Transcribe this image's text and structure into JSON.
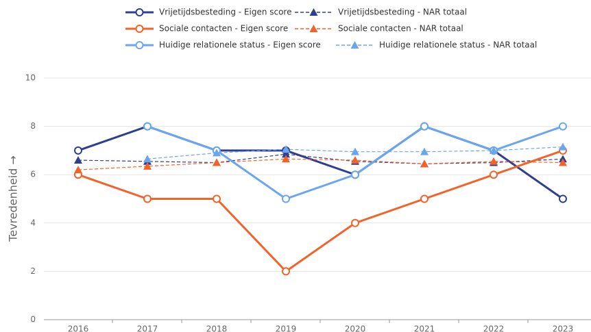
{
  "chart_data": {
    "type": "line",
    "y_label": "Tevredenheid →",
    "categories": [
      "2016",
      "2017",
      "2018",
      "2019",
      "2020",
      "2021",
      "2022",
      "2023"
    ],
    "ylim": [
      0,
      10
    ],
    "yticks": [
      0,
      2,
      4,
      6,
      8,
      10
    ],
    "grid": true,
    "series": [
      {
        "name": "Vrijetijdsbesteding - Eigen score",
        "color": "#2e3f8f",
        "dashed": false,
        "marker": "circle",
        "values": [
          7,
          8,
          7,
          7,
          6,
          8,
          7,
          5
        ]
      },
      {
        "name": "Vrijetijdsbesteding - NAR totaal",
        "color": "#2e3f8f",
        "dashed": true,
        "marker": "triangle",
        "values": [
          6.6,
          6.55,
          6.5,
          6.85,
          6.55,
          6.45,
          6.5,
          6.65
        ]
      },
      {
        "name": "Sociale contacten - Eigen score",
        "color": "#f4622a",
        "dashed": false,
        "marker": "circle",
        "values": [
          6,
          5,
          5,
          2,
          4,
          5,
          6,
          7
        ]
      },
      {
        "name": "Sociale contacten - NAR totaal",
        "color": "#f4622a",
        "dashed": true,
        "marker": "triangle",
        "values": [
          6.2,
          6.35,
          6.5,
          6.65,
          6.6,
          6.45,
          6.55,
          6.5
        ]
      },
      {
        "name": "Huidige relationele status - Eigen score",
        "color": "#6aa6f0",
        "dashed": false,
        "marker": "circle",
        "values": [
          null,
          8,
          7,
          5,
          6,
          8,
          7,
          8
        ]
      },
      {
        "name": "Huidige relationele status - NAR totaal",
        "color": "#6aa6f0",
        "dashed": true,
        "marker": "triangle",
        "values": [
          null,
          6.65,
          6.9,
          7.05,
          6.95,
          6.95,
          7.0,
          7.15
        ]
      }
    ]
  }
}
